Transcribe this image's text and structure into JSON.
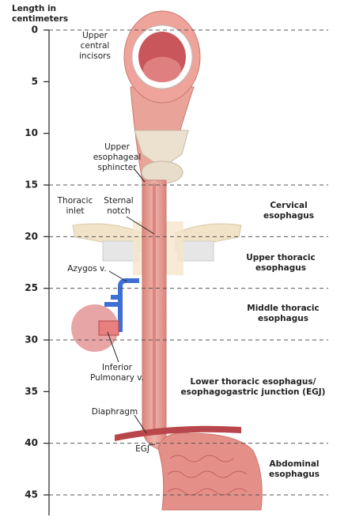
{
  "axis": {
    "title": [
      "Length in",
      "centimeters"
    ],
    "ticks": [
      {
        "value": 0,
        "dashed": true
      },
      {
        "value": 5,
        "dashed": false
      },
      {
        "value": 10,
        "dashed": false
      },
      {
        "value": 15,
        "dashed": true
      },
      {
        "value": 20,
        "dashed": true
      },
      {
        "value": 25,
        "dashed": true
      },
      {
        "value": 30,
        "dashed": true
      },
      {
        "value": 35,
        "dashed": false
      },
      {
        "value": 40,
        "dashed": true
      },
      {
        "value": 45,
        "dashed": true
      }
    ]
  },
  "anatomy_labels": [
    {
      "lines": [
        "Upper",
        "central",
        "incisors"
      ]
    },
    {
      "lines": [
        "Upper",
        "esophageal",
        "sphincter"
      ]
    },
    {
      "lines": [
        "Thoracic",
        "inlet"
      ]
    },
    {
      "lines": [
        "Sternal",
        "notch"
      ]
    },
    {
      "lines": [
        "Azygos v."
      ]
    },
    {
      "lines": [
        "Inferior",
        "Pulmonary v."
      ]
    },
    {
      "lines": [
        "Diaphragm"
      ]
    },
    {
      "lines": [
        "EGJ"
      ]
    }
  ],
  "regions": [
    {
      "lines": [
        "Cervical",
        "esophagus"
      ]
    },
    {
      "lines": [
        "Upper thoracic",
        "esophagus"
      ]
    },
    {
      "lines": [
        "Middle thoracic",
        "esophagus"
      ]
    },
    {
      "lines": [
        "Lower thoracic esophagus/",
        "esophagogastric junction (EGJ)"
      ]
    },
    {
      "lines": [
        "Abdominal",
        "esophagus"
      ]
    }
  ]
}
